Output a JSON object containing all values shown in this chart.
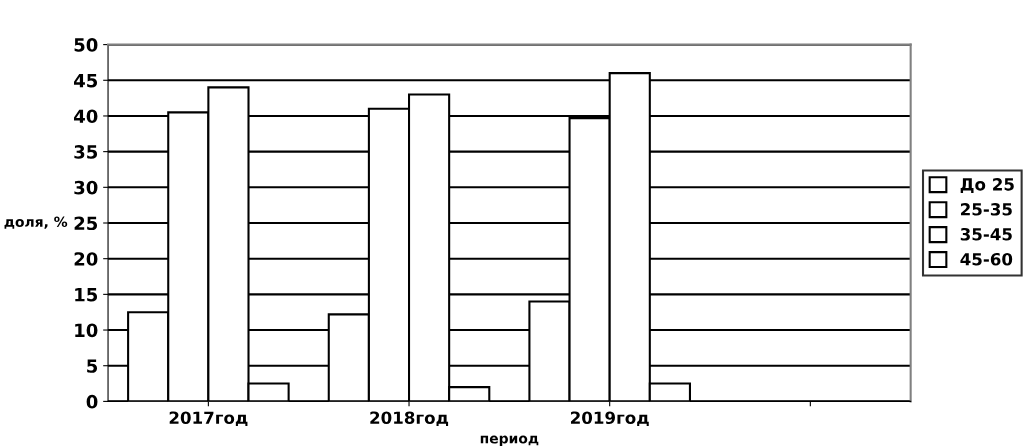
{
  "chart_data": {
    "type": "bar",
    "xlabel": "период",
    "ylabel": "доля, %",
    "categories": [
      "2017год",
      "2018год",
      "2019год",
      null
    ],
    "series": [
      {
        "name": "До 25",
        "color": "#ffffff",
        "values": [
          12.5,
          12.2,
          14,
          null
        ]
      },
      {
        "name": "25-35",
        "color": "#ffffff",
        "values": [
          40.5,
          41,
          39.7,
          null
        ]
      },
      {
        "name": "35-45",
        "color": "#ffffff",
        "values": [
          44,
          43,
          46,
          null
        ]
      },
      {
        "name": "45-60",
        "color": "#ffffff",
        "values": [
          2.5,
          2,
          2.5,
          null
        ]
      }
    ],
    "ylim": [
      0,
      50
    ],
    "yticks": [
      0,
      5,
      10,
      15,
      20,
      25,
      30,
      35,
      40,
      45,
      50
    ],
    "grid": "y",
    "legend": "right"
  }
}
